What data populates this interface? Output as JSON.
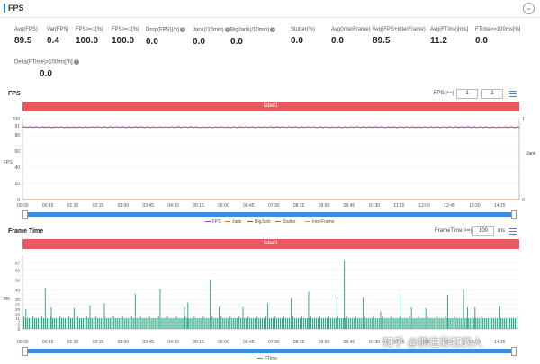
{
  "header": {
    "title": "FPS",
    "collapse_glyph": "⌄"
  },
  "metrics": [
    {
      "label": "Avg(FPS)",
      "value": "89.5",
      "help": false
    },
    {
      "label": "Var(FPS)",
      "value": "0.4",
      "help": false
    },
    {
      "label": "FPS>=1[%]",
      "value": "100.0",
      "help": false
    },
    {
      "label": "FPS>=1[%]",
      "value": "100.0",
      "help": false
    },
    {
      "label": "Drop(FPS)[/h]",
      "value": "0.0",
      "help": true
    },
    {
      "label": "Jank(/10min)",
      "value": "0.0",
      "help": true
    },
    {
      "label": "BigJank(/10min)",
      "value": "0.0",
      "help": true
    },
    {
      "label": "Stutter(%)",
      "value": "0.0",
      "help": false
    },
    {
      "label": "Avg(InterFrame)",
      "value": "0.0",
      "help": false
    },
    {
      "label": "Avg(FPS+InterFrame)",
      "value": "89.5",
      "help": false
    },
    {
      "label": "Avg(FTime)[ms]",
      "value": "11.2",
      "help": false
    },
    {
      "label": "FTime>=100ms[%]",
      "value": "0.0",
      "help": false
    },
    {
      "label": "Delta(FTime)>100ms[/h]",
      "value": "0.0",
      "help": true
    }
  ],
  "fps_section": {
    "title": "FPS",
    "control_label": "FPS(>=)",
    "input1": "1",
    "input2": "1",
    "label_bar": "label1",
    "y_axis_left": "FPS",
    "y_axis_right": "Jank",
    "legend": [
      "FPS",
      "Jank",
      "BigJank",
      "Stutter",
      "InterFrame"
    ]
  },
  "frametime_section": {
    "title": "Frame Time",
    "control_label": "FrameTime(>=)",
    "input": "100",
    "unit": "ms",
    "label_bar": "label1",
    "y_axis": "ms",
    "legend": [
      "FTime"
    ]
  },
  "watermark": "知乎 @抓住彩虹的人",
  "colors": {
    "fps_line": "#8e44ad",
    "ftime_bar": "#3aa88a",
    "label_bar": "#e8585f",
    "scroll": "#3c8fe0",
    "accent": "#1e88e5"
  },
  "chart_data": [
    {
      "type": "line",
      "x": [
        "00:00",
        "00:45",
        "01:30",
        "02:15",
        "03:00",
        "03:45",
        "04:30",
        "05:15",
        "06:00",
        "06:45",
        "07:30",
        "08:15",
        "09:00",
        "09:45",
        "10:30",
        "11:15",
        "12:00",
        "12:45",
        "13:30",
        "14:15"
      ],
      "series": [
        {
          "name": "FPS",
          "values": [
            89.6,
            89.5,
            89.4,
            89.6,
            89.5,
            89.5,
            89.6,
            89.4,
            89.5,
            89.5,
            89.6,
            89.5,
            89.4,
            89.6,
            89.5,
            89.5,
            89.5,
            89.6,
            89.4,
            89.5
          ]
        },
        {
          "name": "Jank",
          "values": [
            0,
            0,
            0,
            0,
            0,
            0,
            0,
            0,
            0,
            0,
            0,
            0,
            0,
            0,
            0,
            0,
            0,
            0,
            0,
            0
          ]
        }
      ],
      "ylim": [
        0,
        100
      ],
      "yticks": [
        0,
        20,
        40,
        60,
        80,
        91,
        100
      ],
      "y2ticks": [
        0,
        1
      ],
      "grid": true
    },
    {
      "type": "bar",
      "x": [
        "00:00",
        "00:45",
        "01:30",
        "02:15",
        "03:00",
        "03:45",
        "04:30",
        "05:15",
        "06:00",
        "06:45",
        "07:30",
        "08:15",
        "09:00",
        "09:45",
        "10:30",
        "11:15",
        "12:00",
        "12:45",
        "13:30",
        "14:15"
      ],
      "series": [
        {
          "name": "FTime",
          "baseline": 11,
          "spikes": [
            [
              0.6,
              20
            ],
            [
              4.5,
              42
            ],
            [
              5.7,
              22
            ],
            [
              10.3,
              21
            ],
            [
              13.5,
              24
            ],
            [
              16.4,
              26
            ],
            [
              22.6,
              36
            ],
            [
              27.6,
              41
            ],
            [
              32.5,
              22
            ],
            [
              33.2,
              27
            ],
            [
              37.7,
              50
            ],
            [
              39.5,
              22
            ],
            [
              44.3,
              22
            ],
            [
              49.3,
              26
            ],
            [
              54.0,
              31
            ],
            [
              57.5,
              38
            ],
            [
              63.2,
              33
            ],
            [
              64.7,
              70
            ],
            [
              68.5,
              32
            ],
            [
              72.0,
              18
            ],
            [
              75.9,
              35
            ],
            [
              78.2,
              22
            ],
            [
              81.1,
              21
            ],
            [
              85.5,
              35
            ],
            [
              88.7,
              40
            ],
            [
              89.5,
              22
            ],
            [
              91.0,
              22
            ],
            [
              96.0,
              23
            ]
          ]
        }
      ],
      "ylim": [
        0,
        75
      ],
      "yticks": [
        0,
        3,
        7,
        11,
        15,
        20,
        25,
        30,
        40,
        50,
        60,
        67
      ],
      "grid": true
    }
  ]
}
